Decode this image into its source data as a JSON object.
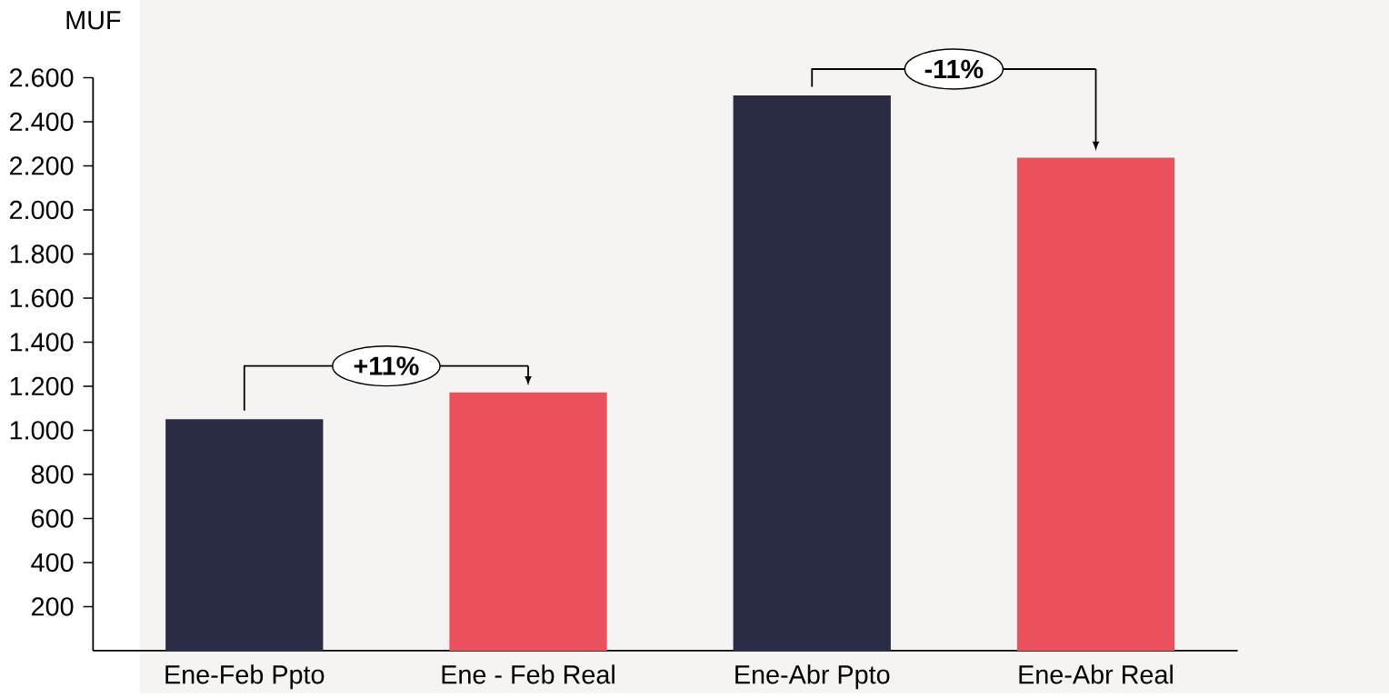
{
  "chart_data": {
    "type": "bar",
    "ylabel": "MUF",
    "categories": [
      "Ene-Feb Ppto",
      "Ene - Feb Real",
      "Ene-Abr Ppto",
      "Ene-Abr Real"
    ],
    "values": [
      1050,
      1172,
      2519,
      2237
    ],
    "colors": [
      "#2a2b45",
      "#eb505c",
      "#2a2b45",
      "#eb505c"
    ],
    "ylim": [
      0,
      2600
    ],
    "yticks": [
      200,
      400,
      600,
      800,
      {
        "value": 1000,
        "label": "1.000"
      },
      {
        "value": 1200,
        "label": "1.200"
      },
      {
        "value": 1400,
        "label": "1.400"
      },
      {
        "value": 1600,
        "label": "1.600"
      },
      {
        "value": 1800,
        "label": "1.800"
      },
      {
        "value": 2000,
        "label": "2.000"
      },
      {
        "value": 2200,
        "label": "2.200"
      },
      {
        "value": 2400,
        "label": "2.400"
      },
      {
        "value": 2600,
        "label": "2.600"
      }
    ],
    "annotations": [
      "+11%",
      "-11%"
    ]
  }
}
